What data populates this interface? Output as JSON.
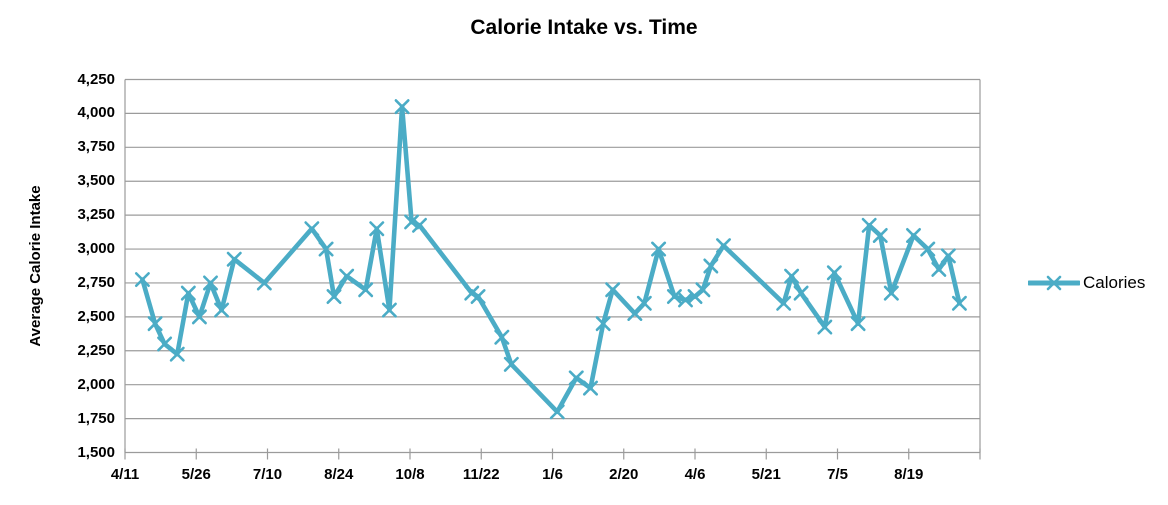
{
  "chart_data": {
    "type": "line",
    "title": "Calorie Intake vs. Time",
    "ylabel": "Average Calorie Intake",
    "xlabel": "",
    "grid": true,
    "legend": {
      "position": "right",
      "label": "Calories"
    },
    "ylim": [
      1500,
      4250
    ],
    "y_tick_step": 250,
    "y_tick_labels": [
      "4,250",
      "4,000",
      "3,750",
      "3,500",
      "3,250",
      "3,000",
      "2,750",
      "2,500",
      "2,250",
      "2,000",
      "1,750",
      "1,500"
    ],
    "x_tick_labels": [
      "4/11",
      "5/26",
      "7/10",
      "8/24",
      "10/8",
      "11/22",
      "1/6",
      "2/20",
      "4/6",
      "5/21",
      "7/5",
      "8/19"
    ],
    "x_tick_interval_days": 45,
    "xlim_days": [
      0,
      540
    ],
    "series": [
      {
        "name": "Calories",
        "marker": "x",
        "points_day_value": [
          [
            11,
            2775
          ],
          [
            19,
            2450
          ],
          [
            25,
            2300
          ],
          [
            33,
            2225
          ],
          [
            40,
            2675
          ],
          [
            47,
            2500
          ],
          [
            54,
            2750
          ],
          [
            61,
            2550
          ],
          [
            69,
            2925
          ],
          [
            88,
            2750
          ],
          [
            118,
            3150
          ],
          [
            127,
            3000
          ],
          [
            132,
            2650
          ],
          [
            140,
            2800
          ],
          [
            152,
            2700
          ],
          [
            159,
            3150
          ],
          [
            167,
            2550
          ],
          [
            175,
            4050
          ],
          [
            181,
            3200
          ],
          [
            186,
            3175
          ],
          [
            219,
            2675
          ],
          [
            223,
            2650
          ],
          [
            238,
            2350
          ],
          [
            244,
            2150
          ],
          [
            273,
            1800
          ],
          [
            285,
            2050
          ],
          [
            294,
            1975
          ],
          [
            302,
            2450
          ],
          [
            308,
            2700
          ],
          [
            322,
            2525
          ],
          [
            328,
            2600
          ],
          [
            337,
            3000
          ],
          [
            347,
            2650
          ],
          [
            354,
            2625
          ],
          [
            360,
            2650
          ],
          [
            365,
            2700
          ],
          [
            370,
            2875
          ],
          [
            378,
            3025
          ],
          [
            416,
            2600
          ],
          [
            421,
            2800
          ],
          [
            427,
            2675
          ],
          [
            442,
            2425
          ],
          [
            448,
            2825
          ],
          [
            463,
            2450
          ],
          [
            470,
            3175
          ],
          [
            477,
            3100
          ],
          [
            484,
            2675
          ],
          [
            498,
            3100
          ],
          [
            507,
            3000
          ],
          [
            514,
            2850
          ],
          [
            520,
            2950
          ],
          [
            527,
            2600
          ]
        ]
      }
    ]
  },
  "colors": {
    "series": "#4BACC6",
    "gridline": "#9B9B9B",
    "axis": "#9B9B9B",
    "text": "#000000"
  }
}
